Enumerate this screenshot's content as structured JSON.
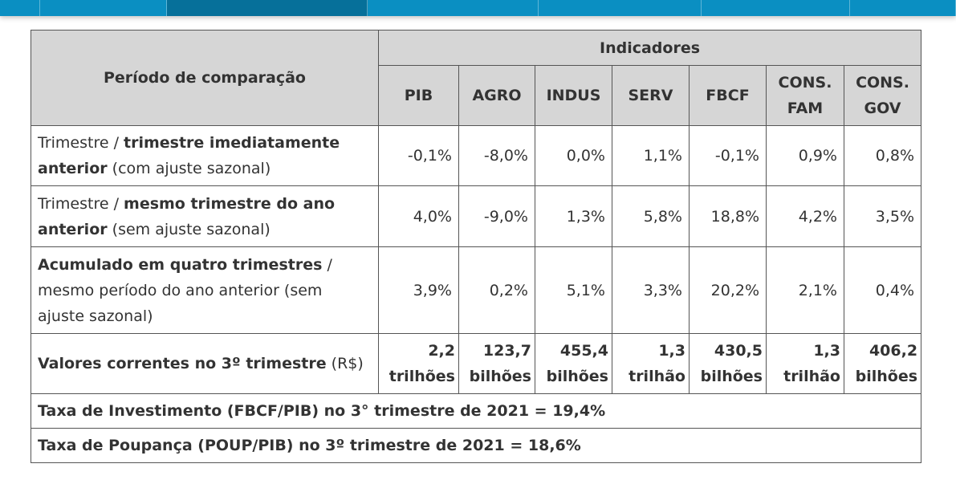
{
  "header": {
    "periodo": "Período de comparação",
    "indicadores": "Indicadores",
    "columns": [
      "PIB",
      "AGRO",
      "INDUS",
      "SERV",
      "FBCF",
      "CONS. FAM",
      "CONS. GOV"
    ]
  },
  "rows": [
    {
      "label_parts": [
        {
          "text": "Trimestre / ",
          "bold": false
        },
        {
          "text": "trimestre imediatamente anterior",
          "bold": true
        },
        {
          "text": " (com ajuste sazonal)",
          "bold": false
        }
      ],
      "values": [
        "-0,1%",
        "-8,0%",
        "0,0%",
        "1,1%",
        "-0,1%",
        "0,9%",
        "0,8%"
      ]
    },
    {
      "label_parts": [
        {
          "text": "Trimestre / ",
          "bold": false
        },
        {
          "text": "mesmo trimestre do ano anterior",
          "bold": true
        },
        {
          "text": " (sem ajuste sazonal)",
          "bold": false
        }
      ],
      "values": [
        "4,0%",
        "-9,0%",
        "1,3%",
        "5,8%",
        "18,8%",
        "4,2%",
        "3,5%"
      ]
    },
    {
      "label_parts": [
        {
          "text": "Acumulado em quatro trimestres",
          "bold": true
        },
        {
          "text": " / mesmo período do ano anterior (sem ajuste sazonal)",
          "bold": false
        }
      ],
      "values": [
        "3,9%",
        "0,2%",
        "5,1%",
        "3,3%",
        "20,2%",
        "2,1%",
        "0,4%"
      ]
    },
    {
      "label_parts": [
        {
          "text": "Valores correntes no 3º trimestre",
          "bold": true
        },
        {
          "text": " (R$)",
          "bold": false
        }
      ],
      "values": [
        "2,2 trilhões",
        "123,7 bilhões",
        "455,4 bilhões",
        "1,3 trilhão",
        "430,5 bilhões",
        "1,3 trilhão",
        "406,2 bilhões"
      ],
      "bold_values": true
    }
  ],
  "footer": {
    "taxa_investimento": "Taxa de Investimento (FBCF/PIB) no 3° trimestre de 2021 = 19,4%",
    "taxa_poupanca": "Taxa de Poupança (POUP/PIB) no 3º trimestre de 2021 = 18,6%"
  },
  "colors": {
    "header_bg": "#d6d6d6",
    "top_bar": "#0a8fc2",
    "top_bar_dark": "#06709a",
    "border": "#555555",
    "text": "#333333"
  }
}
